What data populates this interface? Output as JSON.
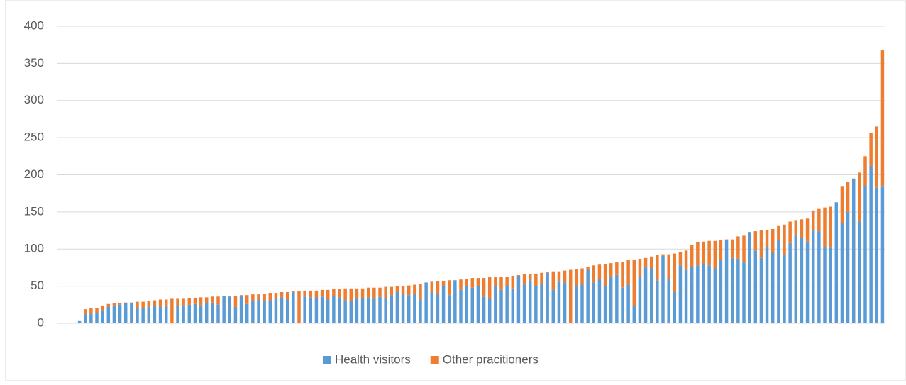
{
  "chart_data": {
    "type": "stacked-bar",
    "ylim": [
      0,
      400
    ],
    "yticks": [
      0,
      50,
      100,
      150,
      200,
      250,
      300,
      350,
      400
    ],
    "grid": true,
    "legend": "bottom",
    "series": [
      {
        "name": "Health visitors",
        "color": "#5b9bd5",
        "values": [
          3,
          12,
          13,
          14,
          18,
          22,
          24,
          25,
          27,
          28,
          20,
          21,
          22,
          23,
          22,
          24,
          0,
          23,
          24,
          25,
          26,
          24,
          27,
          28,
          25,
          37,
          36,
          22,
          37,
          26,
          30,
          32,
          30,
          31,
          33,
          35,
          32,
          42,
          0,
          36,
          35,
          34,
          36,
          32,
          37,
          35,
          31,
          30,
          33,
          34,
          35,
          33,
          36,
          34,
          38,
          42,
          40,
          38,
          40,
          32,
          55,
          42,
          40,
          50,
          38,
          58,
          45,
          50,
          48,
          50,
          36,
          33,
          50,
          45,
          50,
          47,
          64,
          52,
          58,
          50,
          53,
          68,
          45,
          56,
          55,
          0,
          50,
          52,
          72,
          55,
          60,
          50,
          62,
          65,
          48,
          52,
          23,
          63,
          75,
          74,
          58,
          91,
          60,
          42,
          78,
          72,
          76,
          78,
          80,
          78,
          74,
          85,
          112,
          88,
          87,
          82,
          123,
          98,
          88,
          103,
          95,
          112,
          92,
          108,
          118,
          115,
          110,
          125,
          124,
          103,
          102,
          163,
          135,
          150,
          195,
          137,
          185,
          212,
          183,
          184
        ]
      },
      {
        "name": "Other pracitioners",
        "color": "#ed7d31",
        "values": [
          0,
          7,
          7,
          7,
          6,
          4,
          3,
          2,
          1,
          0,
          9,
          8,
          8,
          8,
          10,
          8,
          33,
          10,
          9,
          9,
          8,
          11,
          8,
          8,
          11,
          0,
          1,
          15,
          1,
          12,
          9,
          7,
          10,
          10,
          8,
          7,
          10,
          1,
          43,
          8,
          9,
          10,
          9,
          13,
          9,
          11,
          16,
          17,
          14,
          13,
          13,
          15,
          12,
          15,
          11,
          8,
          10,
          13,
          12,
          21,
          0,
          14,
          17,
          7,
          20,
          0,
          14,
          10,
          13,
          11,
          25,
          29,
          12,
          18,
          13,
          17,
          1,
          14,
          8,
          17,
          15,
          1,
          25,
          14,
          16,
          72,
          23,
          22,
          4,
          23,
          19,
          30,
          19,
          17,
          35,
          33,
          63,
          24,
          13,
          16,
          34,
          2,
          33,
          52,
          18,
          26,
          30,
          31,
          30,
          33,
          37,
          27,
          1,
          25,
          30,
          36,
          0,
          26,
          37,
          23,
          32,
          19,
          41,
          29,
          21,
          25,
          31,
          27,
          30,
          53,
          55,
          0,
          49,
          40,
          0,
          66,
          40,
          44,
          82,
          184
        ]
      }
    ]
  }
}
